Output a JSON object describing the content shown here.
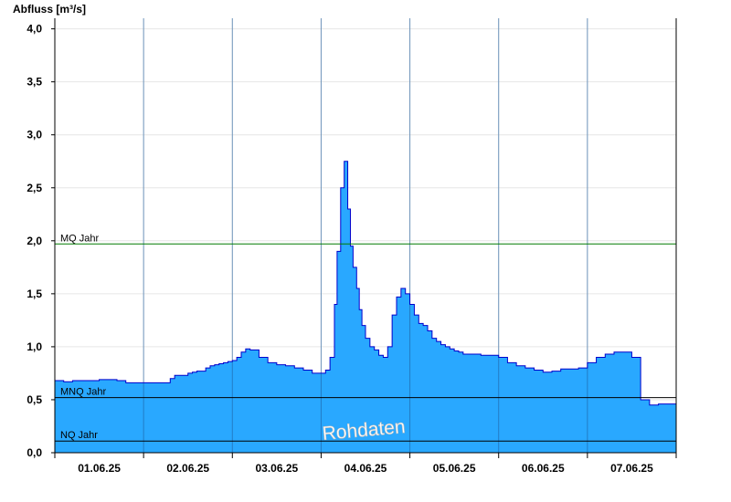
{
  "chart_data": {
    "type": "area",
    "title": "",
    "ylabel": "Abfluss [m³/s]",
    "xlabel": "",
    "ylim": [
      0,
      4.1
    ],
    "grid": true,
    "y_ticks": [
      "0,0",
      "0,5",
      "1,0",
      "1,5",
      "2,0",
      "2,5",
      "3,0",
      "3,5",
      "4,0"
    ],
    "x_ticks": [
      "01.06.25",
      "02.06.25",
      "03.06.25",
      "04.06.25",
      "05.06.25",
      "06.06.25",
      "07.06.25"
    ],
    "x_range_days": [
      0,
      7
    ],
    "reference_lines": [
      {
        "label": "MQ Jahr",
        "value": 1.97,
        "color": "#007a00"
      },
      {
        "label": "MNQ Jahr",
        "value": 0.52,
        "color": "#000000"
      },
      {
        "label": "NQ Jahr",
        "value": 0.11,
        "color": "#000000"
      }
    ],
    "watermark": "Rohdaten",
    "fill_color": "#29a8ff",
    "line_color": "#0000cc",
    "series": [
      {
        "x": [
          0.0,
          0.05,
          0.1,
          0.2,
          0.3,
          0.4,
          0.5,
          0.6,
          0.7,
          0.8,
          0.9,
          1.0,
          1.1,
          1.2,
          1.3,
          1.35,
          1.4,
          1.45,
          1.5,
          1.55,
          1.6,
          1.7,
          1.75,
          1.8,
          1.85,
          1.9,
          1.95,
          2.0,
          2.05,
          2.1,
          2.15,
          2.2,
          2.3,
          2.4,
          2.5,
          2.6,
          2.7,
          2.8,
          2.9,
          2.95,
          3.0,
          3.05,
          3.1,
          3.15,
          3.18,
          3.22,
          3.26,
          3.3,
          3.33,
          3.36,
          3.4,
          3.43,
          3.46,
          3.5,
          3.55,
          3.6,
          3.65,
          3.7,
          3.75,
          3.8,
          3.85,
          3.9,
          3.95,
          4.0,
          4.05,
          4.1,
          4.15,
          4.2,
          4.25,
          4.3,
          4.35,
          4.4,
          4.45,
          4.5,
          4.55,
          4.6,
          4.7,
          4.8,
          4.9,
          5.0,
          5.1,
          5.2,
          5.3,
          5.4,
          5.5,
          5.6,
          5.7,
          5.8,
          5.9,
          6.0,
          6.1,
          6.2,
          6.3,
          6.4,
          6.5,
          6.6,
          6.7,
          6.8,
          6.85,
          6.9,
          6.95,
          7.0
        ],
        "y": [
          0.68,
          0.68,
          0.67,
          0.68,
          0.68,
          0.68,
          0.69,
          0.69,
          0.68,
          0.66,
          0.66,
          0.66,
          0.66,
          0.66,
          0.7,
          0.73,
          0.73,
          0.73,
          0.75,
          0.76,
          0.77,
          0.8,
          0.82,
          0.83,
          0.84,
          0.85,
          0.86,
          0.87,
          0.9,
          0.95,
          0.98,
          0.97,
          0.9,
          0.85,
          0.83,
          0.82,
          0.8,
          0.78,
          0.75,
          0.75,
          0.75,
          0.78,
          0.9,
          1.4,
          1.9,
          2.5,
          2.75,
          2.3,
          1.95,
          1.75,
          1.55,
          1.35,
          1.2,
          1.08,
          1.0,
          0.97,
          0.92,
          0.9,
          1.0,
          1.3,
          1.47,
          1.55,
          1.5,
          1.4,
          1.3,
          1.22,
          1.2,
          1.15,
          1.08,
          1.05,
          1.02,
          1.0,
          0.98,
          0.96,
          0.95,
          0.93,
          0.93,
          0.92,
          0.92,
          0.9,
          0.85,
          0.82,
          0.8,
          0.78,
          0.76,
          0.77,
          0.79,
          0.79,
          0.8,
          0.85,
          0.9,
          0.93,
          0.95,
          0.95,
          0.9,
          0.5,
          0.45,
          0.46,
          0.46,
          0.46,
          0.46,
          0.46
        ]
      }
    ]
  }
}
